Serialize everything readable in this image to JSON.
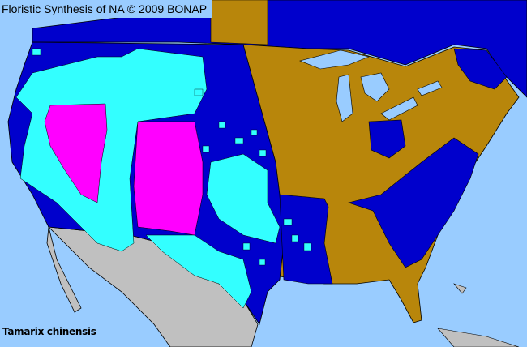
{
  "header": {
    "title": "Floristic Synthesis of NA © 2009 BONAP"
  },
  "map": {
    "species": "Tamarix chinensis",
    "colors": {
      "water": "#99ccff",
      "present_state": "#0000cc",
      "present_county": "#33ffff",
      "noxious": "#ff00ff",
      "absent": "#b8860b",
      "outside_area": "#c0c0c0",
      "borders": "#000033"
    }
  }
}
